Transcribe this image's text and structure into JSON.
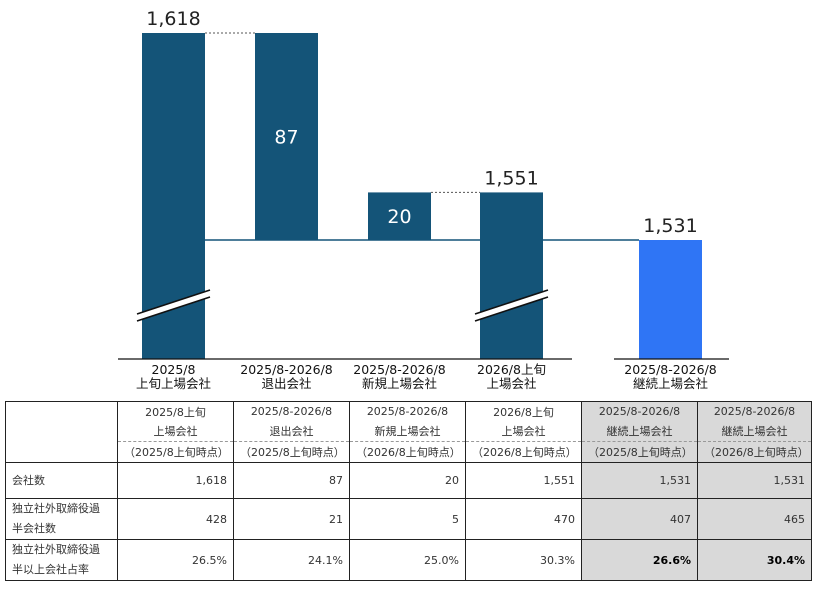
{
  "chart_data": {
    "type": "bar",
    "subtype": "waterfall",
    "categories": [
      [
        "2025/8",
        "上旬上場会社"
      ],
      [
        "2025/8-2026/8",
        "退出会社"
      ],
      [
        "2025/8-2026/8",
        "新規上場会社"
      ],
      [
        "2026/8上旬",
        "上場会社"
      ],
      [
        "2025/8-2026/8",
        "継続上場会社"
      ]
    ],
    "values": [
      1618,
      87,
      20,
      1551,
      1531
    ],
    "value_labels": [
      "1,618",
      "87",
      "20",
      "1,551",
      "1,531"
    ],
    "steps": [
      "total",
      "decrease",
      "increase",
      "total",
      "subtotal"
    ],
    "axis_break": true,
    "colors": {
      "main": "#145478",
      "highlight": "#2f75f5"
    }
  },
  "table": {
    "headers": [
      {
        "line1": "2025/8上旬",
        "line2": "上場会社",
        "line3": "（2025/8上旬時点）"
      },
      {
        "line1": "2025/8-2026/8",
        "line2": "退出会社",
        "line3": "（2025/8上旬時点）"
      },
      {
        "line1": "2025/8-2026/8",
        "line2": "新規上場会社",
        "line3": "（2026/8上旬時点）"
      },
      {
        "line1": "2026/8上旬",
        "line2": "上場会社",
        "line3": "（2026/8上旬時点）"
      },
      {
        "line1": "2025/8-2026/8",
        "line2": "継続上場会社",
        "line3": "（2025/8上旬時点）"
      },
      {
        "line1": "2025/8-2026/8",
        "line2": "継続上場会社",
        "line3": "（2026/8上旬時点）"
      }
    ],
    "rows": [
      {
        "label": "会社数",
        "values": [
          "1,618",
          "87",
          "20",
          "1,551",
          "1,531",
          "1,531"
        ]
      },
      {
        "label_line1": "独立社外取締役過",
        "label_line2": "半会社数",
        "values": [
          "428",
          "21",
          "5",
          "470",
          "407",
          "465"
        ]
      },
      {
        "label_line1": "独立社外取締役過",
        "label_line2": "半以上会社占率",
        "values": [
          "26.5%",
          "24.1%",
          "25.0%",
          "30.3%",
          "26.6%",
          "30.4%"
        ]
      }
    ],
    "highlight_fill": "#d9d9d9"
  }
}
